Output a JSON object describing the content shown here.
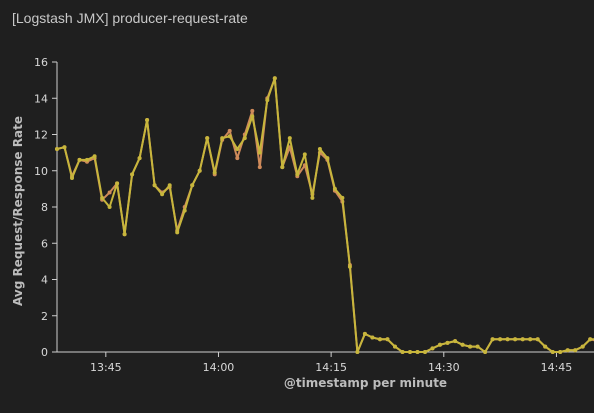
{
  "panel": {
    "title": "[Logstash JMX] producer-request-rate"
  },
  "colors": {
    "background": "#1f1f1f",
    "axis": "#cfcfcf",
    "series_request": "#cf8a5a",
    "series_response": "#c7b63c"
  },
  "chart_data": {
    "type": "line",
    "xlabel": "@timestamp per minute",
    "ylabel": "Avg Request/Response Rate",
    "ylim": [
      0,
      16
    ],
    "yticks": [
      0,
      2,
      4,
      6,
      8,
      10,
      12,
      14,
      16
    ],
    "xticks": [
      {
        "label": "13:45",
        "minute": 825
      },
      {
        "label": "14:00",
        "minute": 840
      },
      {
        "label": "14:15",
        "minute": 855
      },
      {
        "label": "14:30",
        "minute": 870
      },
      {
        "label": "14:45",
        "minute": 885
      }
    ],
    "x_start_minute": 818.5,
    "x_end_minute": 890,
    "grid": false,
    "series": [
      {
        "color": "#cf8a5a",
        "minute_start": 818.5,
        "values": [
          11.2,
          11.3,
          9.7,
          10.6,
          10.5,
          10.7,
          8.4,
          8.8,
          9.3,
          6.5,
          9.8,
          10.7,
          12.8,
          9.2,
          8.8,
          9.1,
          6.7,
          8.0,
          9.2,
          10.0,
          11.8,
          9.8,
          11.7,
          12.2,
          10.7,
          12.0,
          13.3,
          10.2,
          14.0,
          15.1,
          10.2,
          11.3,
          9.7,
          10.3,
          8.7,
          11.0,
          10.6,
          8.9,
          8.3,
          4.8,
          0.0,
          1.0,
          0.8,
          0.7,
          0.7,
          0.3,
          0.0,
          0.0,
          0.0,
          0.0,
          0.2,
          0.4,
          0.5,
          0.6,
          0.4,
          0.3,
          0.3,
          0.0,
          0.7,
          0.7,
          0.7,
          0.7,
          0.7,
          0.7,
          0.7,
          0.3,
          0.0,
          0.0,
          0.1,
          0.1,
          0.3,
          0.7,
          0.6,
          1.0,
          1.0,
          0.8,
          0.0
        ]
      },
      {
        "color": "#c7b63c",
        "minute_start": 818.5,
        "values": [
          11.2,
          11.3,
          9.6,
          10.6,
          10.6,
          10.8,
          8.5,
          8.0,
          9.3,
          6.5,
          9.8,
          10.7,
          12.8,
          9.2,
          8.7,
          9.2,
          6.6,
          7.8,
          9.2,
          10.0,
          11.8,
          9.9,
          11.8,
          11.9,
          11.2,
          11.8,
          13.0,
          11.0,
          13.9,
          15.1,
          10.2,
          11.8,
          9.8,
          10.9,
          8.5,
          11.2,
          10.7,
          9.0,
          8.5,
          4.7,
          0.0,
          1.0,
          0.8,
          0.7,
          0.7,
          0.3,
          0.0,
          0.0,
          0.0,
          0.0,
          0.2,
          0.4,
          0.5,
          0.6,
          0.4,
          0.3,
          0.3,
          0.0,
          0.7,
          0.7,
          0.7,
          0.7,
          0.7,
          0.7,
          0.7,
          0.3,
          0.0,
          0.0,
          0.1,
          0.1,
          0.3,
          0.7,
          0.7,
          1.0,
          1.0,
          0.8,
          0.0
        ]
      }
    ]
  }
}
